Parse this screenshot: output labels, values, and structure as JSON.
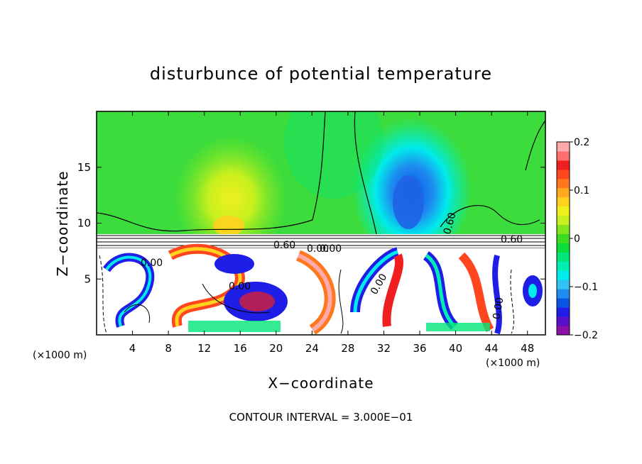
{
  "chart_data": {
    "type": "heatmap",
    "title": "disturbunce of potential temperature",
    "xlabel": "X−coordinate",
    "ylabel": "Z−coordinate",
    "x_unit_left": "(×1000 m)",
    "x_unit_right": "(×1000 m)",
    "footer": "CONTOUR INTERVAL = 3.000E−01",
    "xlim": [
      0,
      50
    ],
    "ylim": [
      0,
      20
    ],
    "x_ticks": [
      "4",
      "8",
      "12",
      "16",
      "20",
      "24",
      "28",
      "32",
      "36",
      "40",
      "44",
      "48"
    ],
    "y_ticks": [
      "5",
      "10",
      "15"
    ],
    "colorbar": {
      "range": [
        -0.2,
        0.2
      ],
      "tick_labels": [
        "0.2",
        "0.1",
        "0",
        "−0.1",
        "−0.2"
      ],
      "colors": [
        "#8c0fa8",
        "#5a0fc8",
        "#1e1ee6",
        "#0a55e6",
        "#1e8cf0",
        "#32c3f5",
        "#00ebeb",
        "#00f0b4",
        "#00e678",
        "#0adc3c",
        "#3cdc1e",
        "#82e61e",
        "#c8f01e",
        "#f0f01e",
        "#ffd21e",
        "#ffaa1e",
        "#ff781e",
        "#ff461e",
        "#f01e1e",
        "#ff6e6e",
        "#ffaaaa"
      ]
    },
    "contour_labels": [
      "0.00",
      "0.60",
      "0.60",
      "0.00",
      "0.00",
      "0.00",
      "0.00",
      "0.60",
      "0.00"
    ],
    "colors": {
      "background_field": "#3cdc3c",
      "warm_plume": "#b4f03c",
      "cool_plume": "#00ebeb",
      "cold_core": "#1e64e6",
      "inversion_layer": "#ffffff"
    }
  }
}
